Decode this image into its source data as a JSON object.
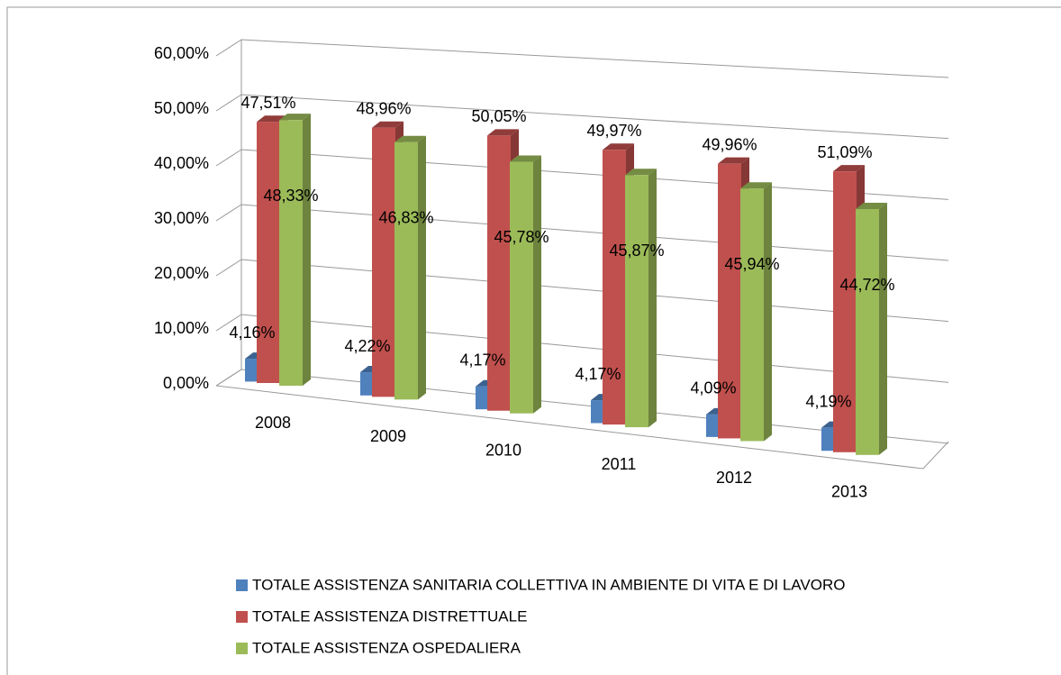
{
  "chart_data": {
    "type": "bar3d",
    "categories": [
      "2008",
      "2009",
      "2010",
      "2011",
      "2012",
      "2013"
    ],
    "series": [
      {
        "name": "TOTALE ASSISTENZA SANITARIA COLLETTIVA IN AMBIENTE DI VITA E DI LAVORO",
        "color": "#4f81bd",
        "values": [
          4.16,
          4.22,
          4.17,
          4.17,
          4.09,
          4.19
        ],
        "value_labels": [
          "4,16%",
          "4,22%",
          "4,17%",
          "4,17%",
          "4,09%",
          "4,19%"
        ]
      },
      {
        "name": "TOTALE ASSISTENZA DISTRETTUALE",
        "color": "#c0504d",
        "values": [
          47.51,
          48.96,
          50.05,
          49.97,
          49.96,
          51.09
        ],
        "value_labels": [
          "47,51%",
          "48,96%",
          "50,05%",
          "49,97%",
          "49,96%",
          "51,09%"
        ]
      },
      {
        "name": "TOTALE ASSISTENZA OSPEDALIERA",
        "color": "#9bbb59",
        "values": [
          48.33,
          46.83,
          45.78,
          45.87,
          45.94,
          44.72
        ],
        "value_labels": [
          "48,33%",
          "46,83%",
          "45,78%",
          "45,87%",
          "45,94%",
          "44,72%"
        ]
      }
    ],
    "ylim": [
      0,
      60
    ],
    "yticks": [
      {
        "value": 0,
        "label": "0,00%"
      },
      {
        "value": 10,
        "label": "10,00%"
      },
      {
        "value": 20,
        "label": "20,00%"
      },
      {
        "value": 30,
        "label": "30,00%"
      },
      {
        "value": 40,
        "label": "40,00%"
      },
      {
        "value": 50,
        "label": "50,00%"
      },
      {
        "value": 60,
        "label": "60,00%"
      }
    ],
    "grid": true,
    "legend": "bottom"
  }
}
